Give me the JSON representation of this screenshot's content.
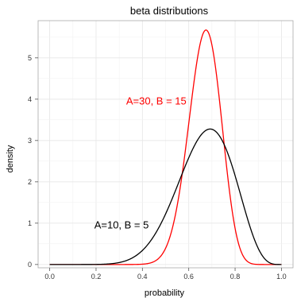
{
  "chart_data": {
    "type": "line",
    "title": "beta distributions",
    "xlabel": "probability",
    "ylabel": "density",
    "xlim": [
      -0.05,
      1.05
    ],
    "ylim": [
      -0.08,
      5.9
    ],
    "x_ticks": [
      0.0,
      0.2,
      0.4,
      0.6,
      0.8,
      1.0
    ],
    "x_tick_labels": [
      "0.0",
      "0.2",
      "0.4",
      "0.6",
      "0.8",
      "1.0"
    ],
    "y_ticks": [
      0,
      1,
      2,
      3,
      4,
      5
    ],
    "y_tick_labels": [
      "0",
      "1",
      "2",
      "3",
      "4",
      "5"
    ],
    "grid": true,
    "series": [
      {
        "alpha": 30,
        "beta": 15,
        "color": "#ff0000",
        "label": "A=30, B = 15"
      },
      {
        "alpha": 10,
        "beta": 5,
        "color": "#000000",
        "label": "A=10, B = 5"
      }
    ],
    "annotations": [
      {
        "text": "A=30, B = 15",
        "x": 0.46,
        "y": 3.95,
        "color": "#ff0000"
      },
      {
        "text": "A=10, B = 5",
        "x": 0.31,
        "y": 0.95,
        "color": "#000000"
      }
    ]
  }
}
